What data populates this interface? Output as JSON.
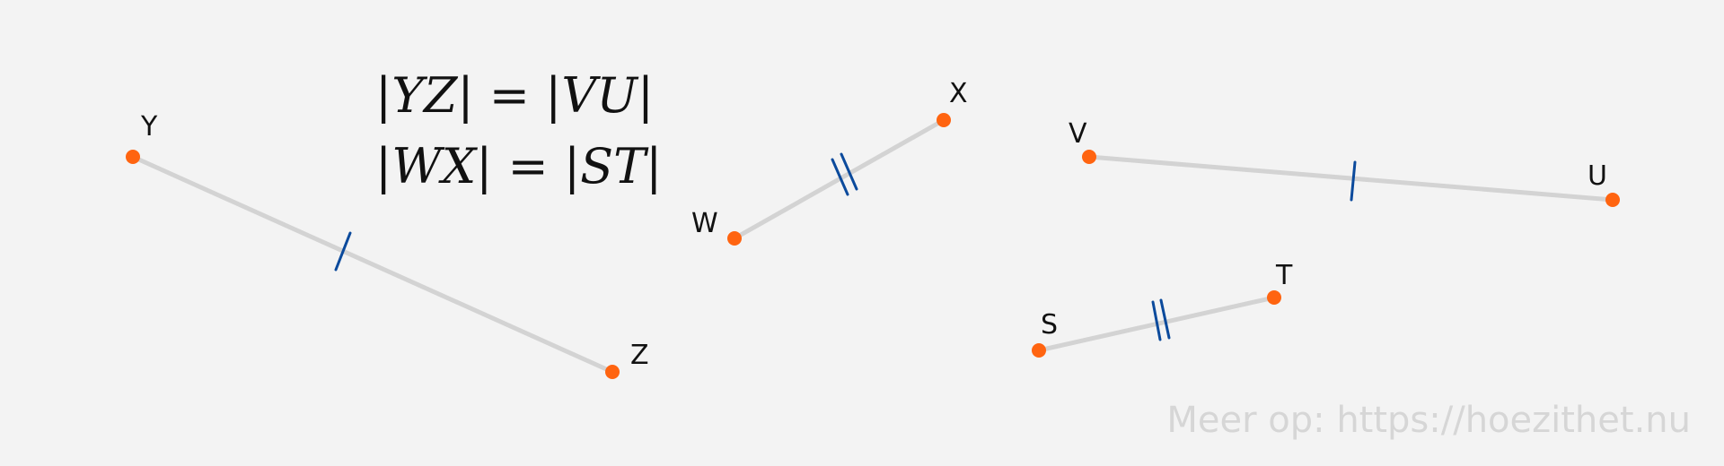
{
  "colors": {
    "background": "#f3f3f3",
    "segment": "#d3d3d3",
    "point": "#ff6410",
    "tick": "#0b4a9c",
    "text": "#111111",
    "watermark": "#d6d6d6"
  },
  "equations": [
    {
      "l1": "Y",
      "l2": "Z",
      "r1": "V",
      "r2": "U"
    },
    {
      "l1": "W",
      "l2": "X",
      "r1": "S",
      "r2": "T"
    }
  ],
  "segments": [
    {
      "from": "Y",
      "to": "Z",
      "ticks": 1
    },
    {
      "from": "W",
      "to": "X",
      "ticks": 2
    },
    {
      "from": "V",
      "to": "U",
      "ticks": 1
    },
    {
      "from": "S",
      "to": "T",
      "ticks": 2
    }
  ],
  "points": {
    "Y": "Y",
    "Z": "Z",
    "W": "W",
    "X": "X",
    "V": "V",
    "U": "U",
    "S": "S",
    "T": "T"
  },
  "watermark": "Meer op: https://hoezithet.nu"
}
